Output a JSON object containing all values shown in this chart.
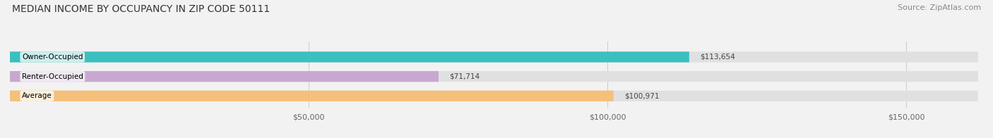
{
  "title": "MEDIAN INCOME BY OCCUPANCY IN ZIP CODE 50111",
  "source": "Source: ZipAtlas.com",
  "categories": [
    "Owner-Occupied",
    "Renter-Occupied",
    "Average"
  ],
  "values": [
    113654,
    71714,
    100971
  ],
  "bar_colors": [
    "#3bbfbf",
    "#c8a8d0",
    "#f5c07a"
  ],
  "label_texts": [
    "$113,654",
    "$71,714",
    "$100,971"
  ],
  "xlim": [
    0,
    162000
  ],
  "xticks": [
    50000,
    100000,
    150000
  ],
  "xtick_labels": [
    "$50,000",
    "$100,000",
    "$150,000"
  ],
  "bg_color": "#f2f2f2",
  "bar_bg_color": "#e0e0e0",
  "title_fontsize": 10,
  "source_fontsize": 8,
  "tick_fontsize": 8,
  "bar_label_fontsize": 7.5,
  "category_fontsize": 7.5,
  "bar_height": 0.55
}
